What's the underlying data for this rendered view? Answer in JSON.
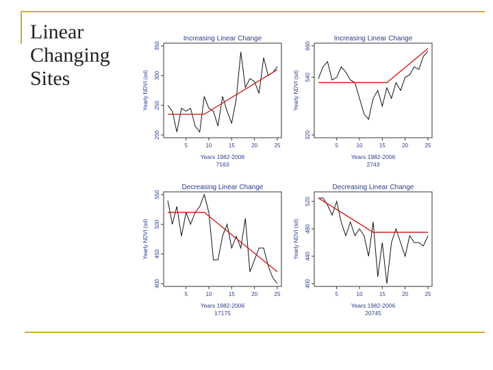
{
  "slide": {
    "title_lines": [
      "Linear",
      "Changing",
      "Sites"
    ],
    "accent_color": "#c8b030"
  },
  "colors": {
    "series": "#111111",
    "fit": "#cc2222",
    "axis": "#333333",
    "label": "#2a3a8a"
  },
  "chart_data": [
    {
      "type": "line",
      "title": "Increasing Linear Change",
      "xlabel": "Years 1982-2006",
      "ylabel": "Yearly NDVI (sd)",
      "site_id": "7163",
      "xlim": [
        1,
        25
      ],
      "ylim": [
        200,
        350
      ],
      "x_ticks": [
        5,
        10,
        15,
        20,
        25
      ],
      "y_ticks": [
        200,
        250,
        300,
        350
      ],
      "series": [
        {
          "values": [
            250,
            240,
            205,
            245,
            240,
            245,
            215,
            205,
            265,
            245,
            240,
            215,
            265,
            240,
            220,
            260,
            340,
            280,
            295,
            290,
            270,
            330,
            300,
            305,
            315
          ]
        }
      ],
      "fit": {
        "x": [
          1,
          9,
          25
        ],
        "y": [
          235,
          235,
          310
        ]
      }
    },
    {
      "type": "line",
      "title": "Increasing Linear Change",
      "xlabel": "Years 1982-2006",
      "ylabel": "Yearly NDVI (sd)",
      "site_id": "2743",
      "xlim": [
        1,
        25
      ],
      "ylim": [
        320,
        660
      ],
      "x_ticks": [
        5,
        10,
        15,
        20,
        25
      ],
      "y_ticks": [
        320,
        540,
        660
      ],
      "series": [
        {
          "values": [
            535,
            580,
            600,
            530,
            540,
            580,
            560,
            530,
            520,
            460,
            400,
            380,
            460,
            490,
            430,
            500,
            460,
            520,
            490,
            540,
            550,
            580,
            570,
            620,
            640
          ]
        }
      ],
      "fit": {
        "x": [
          1,
          16,
          25
        ],
        "y": [
          520,
          520,
          650
        ]
      }
    },
    {
      "type": "line",
      "title": "Decreasing Linear Change",
      "xlabel": "Years 1982-2006",
      "ylabel": "Yearly NDVI (sd)",
      "site_id": "17175",
      "xlim": [
        1,
        25
      ],
      "ylim": [
        400,
        550
      ],
      "x_ticks": [
        5,
        10,
        15,
        20,
        25
      ],
      "y_ticks": [
        400,
        450,
        500,
        550
      ],
      "series": [
        {
          "values": [
            540,
            500,
            530,
            480,
            520,
            500,
            520,
            530,
            550,
            520,
            440,
            440,
            480,
            500,
            460,
            480,
            460,
            510,
            420,
            440,
            460,
            460,
            430,
            410,
            400
          ]
        }
      ],
      "fit": {
        "x": [
          1,
          9,
          25
        ],
        "y": [
          520,
          520,
          420
        ]
      }
    },
    {
      "type": "line",
      "title": "Decreasing Linear Change",
      "xlabel": "Years 1982-2006",
      "ylabel": "Yearly NDVI (sd)",
      "site_id": "20745",
      "xlim": [
        1,
        25
      ],
      "ylim": [
        400,
        530
      ],
      "x_ticks": [
        5,
        10,
        15,
        20,
        25
      ],
      "y_ticks": [
        400,
        440,
        480,
        520
      ],
      "series": [
        {
          "values": [
            525,
            525,
            515,
            500,
            520,
            490,
            470,
            490,
            470,
            480,
            470,
            440,
            490,
            410,
            460,
            400,
            460,
            480,
            460,
            440,
            470,
            460,
            460,
            455,
            470
          ]
        }
      ],
      "fit": {
        "x": [
          1,
          13,
          25
        ],
        "y": [
          525,
          475,
          475
        ]
      }
    }
  ]
}
